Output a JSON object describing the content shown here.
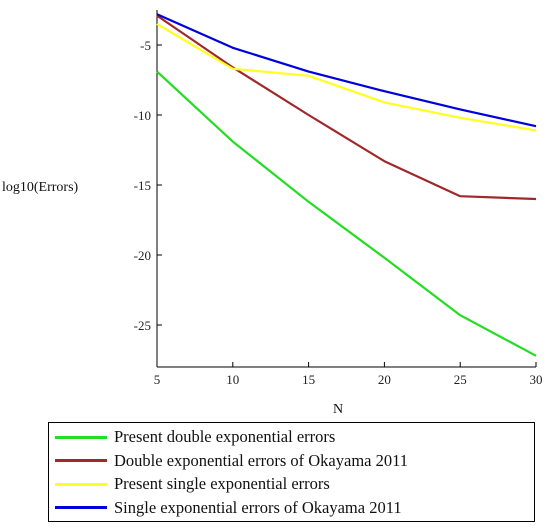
{
  "chart_data": {
    "type": "line",
    "title": "",
    "xlabel": "N",
    "ylabel": "log10(Errors)",
    "xlim": [
      5,
      30
    ],
    "ylim": [
      -28,
      -2.5
    ],
    "x_ticks": [
      5,
      10,
      15,
      20,
      25,
      30
    ],
    "y_ticks": [
      -5,
      -10,
      -15,
      -20,
      -25
    ],
    "x_tick_labels": [
      "5",
      "10",
      "15",
      "20",
      "25",
      "30"
    ],
    "y_tick_labels": [
      "-5",
      "-10",
      "-15",
      "-20",
      "-25"
    ],
    "grid": false,
    "legend_position": "bottom",
    "series": [
      {
        "name": "Present double exponential errors",
        "color": "#22dd22",
        "x": [
          5,
          10,
          15,
          20,
          25,
          30
        ],
        "y": [
          -6.9,
          -11.9,
          -16.2,
          -20.2,
          -24.3,
          -27.2
        ]
      },
      {
        "name": "Double  exponential errors of Okayama 2011",
        "color": "#a0282a",
        "x": [
          5,
          10,
          15,
          20,
          25,
          30
        ],
        "y": [
          -2.9,
          -6.6,
          -10.0,
          -13.3,
          -15.8,
          -16.0
        ]
      },
      {
        "name": "Present single exponential errors",
        "color": "#ffff22",
        "x": [
          5,
          10,
          15,
          20,
          25,
          30
        ],
        "y": [
          -3.5,
          -6.7,
          -7.2,
          -9.1,
          -10.2,
          -11.1
        ]
      },
      {
        "name": "Single exponential errors of Okayama 2011",
        "color": "#0000dd",
        "x": [
          5,
          10,
          15,
          20,
          25,
          30
        ],
        "y": [
          -2.8,
          -5.2,
          -6.9,
          -8.3,
          -9.6,
          -10.8
        ]
      }
    ]
  }
}
